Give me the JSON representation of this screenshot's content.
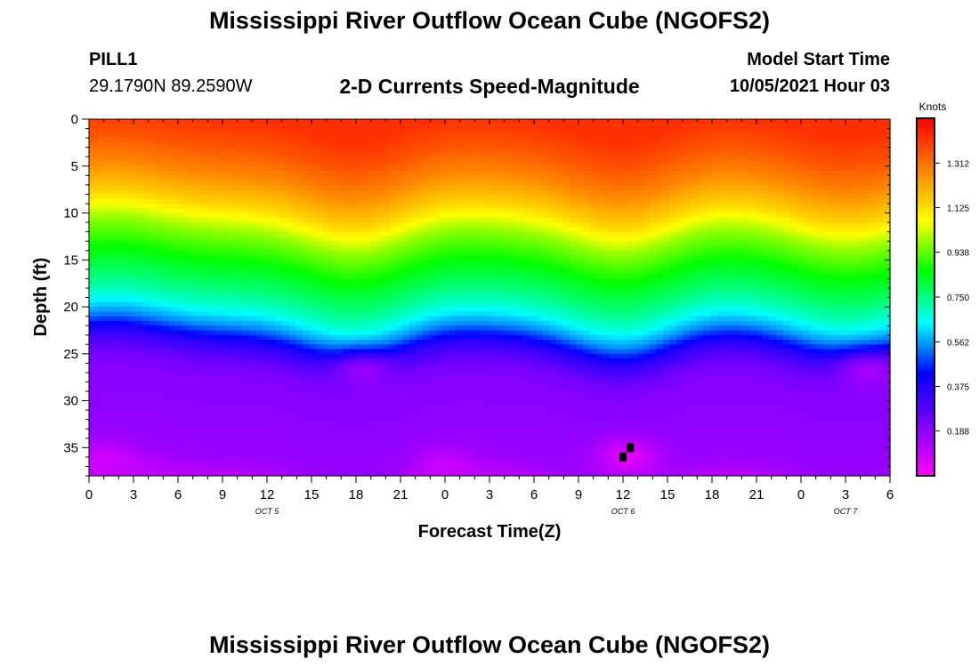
{
  "title_top": "Mississippi River Outflow Ocean Cube (NGOFS2)",
  "title_bottom": "Mississippi River Outflow Ocean Cube (NGOFS2)",
  "station": {
    "name": "PILL1",
    "coords": "29.1790N  89.2590W"
  },
  "plot_title": "2-D Currents Speed-Magnitude",
  "model": {
    "label": "Model Start Time",
    "value": "10/05/2021 Hour 03"
  },
  "colorbar": {
    "unit": "Knots",
    "ticks": [
      "1.312",
      "1.125",
      "0.938",
      "0.750",
      "0.562",
      "0.375",
      "0.188"
    ],
    "tick_values": [
      1.312,
      1.125,
      0.938,
      0.75,
      0.562,
      0.375,
      0.188
    ],
    "range": [
      0.0,
      1.5
    ],
    "stops": [
      "#ff00ff",
      "#7f00ff",
      "#0000ff",
      "#00ffff",
      "#00ff00",
      "#ffff00",
      "#ff8000",
      "#ff0000"
    ]
  },
  "chart_data": {
    "type": "heatmap",
    "title": "2-D Currents Speed-Magnitude",
    "xlabel": "Forecast Time(Z)",
    "ylabel": "Depth (ft)",
    "x_range_hours": [
      0,
      54
    ],
    "y_range_ft": [
      0,
      38
    ],
    "y_inverted": true,
    "x_tick_hours": [
      0,
      3,
      6,
      9,
      12,
      15,
      18,
      21,
      24,
      27,
      30,
      33,
      36,
      39,
      42,
      45,
      48,
      51,
      54
    ],
    "x_tick_labels": [
      "0",
      "3",
      "6",
      "9",
      "12",
      "15",
      "18",
      "21",
      "0",
      "3",
      "6",
      "9",
      "12",
      "15",
      "18",
      "21",
      "0",
      "3",
      "6"
    ],
    "y_ticks": [
      0,
      5,
      10,
      15,
      20,
      25,
      30,
      35
    ],
    "y_tick_labels": [
      "0",
      "5",
      "10",
      "15",
      "20",
      "25",
      "30",
      "35"
    ],
    "date_markers": [
      {
        "label": "OCT 5",
        "hour": 12
      },
      {
        "label": "OCT 6",
        "hour": 36
      },
      {
        "label": "OCT 7",
        "hour": 51
      }
    ],
    "value_unit": "Knots",
    "profile_depth_ft": [
      0,
      3,
      6,
      9,
      12,
      15,
      18,
      20,
      22,
      24,
      26,
      28,
      32,
      36,
      38
    ],
    "profile_speed_knots": [
      1.42,
      1.36,
      1.27,
      1.15,
      0.98,
      0.86,
      0.76,
      0.68,
      0.55,
      0.35,
      0.24,
      0.2,
      0.19,
      0.17,
      0.12
    ],
    "time_anomaly_hours": [
      1.5,
      18,
      24,
      36,
      42,
      51
    ],
    "time_anomaly_ft_shift": [
      -1.5,
      2.5,
      -0.5,
      2.5,
      -0.5,
      2.0
    ],
    "slow_spots": [
      {
        "hour": 1,
        "depth_ft": 36.5,
        "speed_knots": 0.08
      },
      {
        "hour": 24,
        "depth_ft": 37,
        "speed_knots": 0.09
      },
      {
        "hour": 36.3,
        "depth_ft": 36,
        "speed_knots": 0.05
      },
      {
        "hour": 18.5,
        "depth_ft": 27,
        "speed_knots": 0.17
      },
      {
        "hour": 52.5,
        "depth_ft": 27,
        "speed_knots": 0.15
      }
    ],
    "missing_cells": [
      {
        "hour": 36.0,
        "depth_ft": 36.0
      },
      {
        "hour": 36.5,
        "depth_ft": 35.0
      }
    ]
  }
}
